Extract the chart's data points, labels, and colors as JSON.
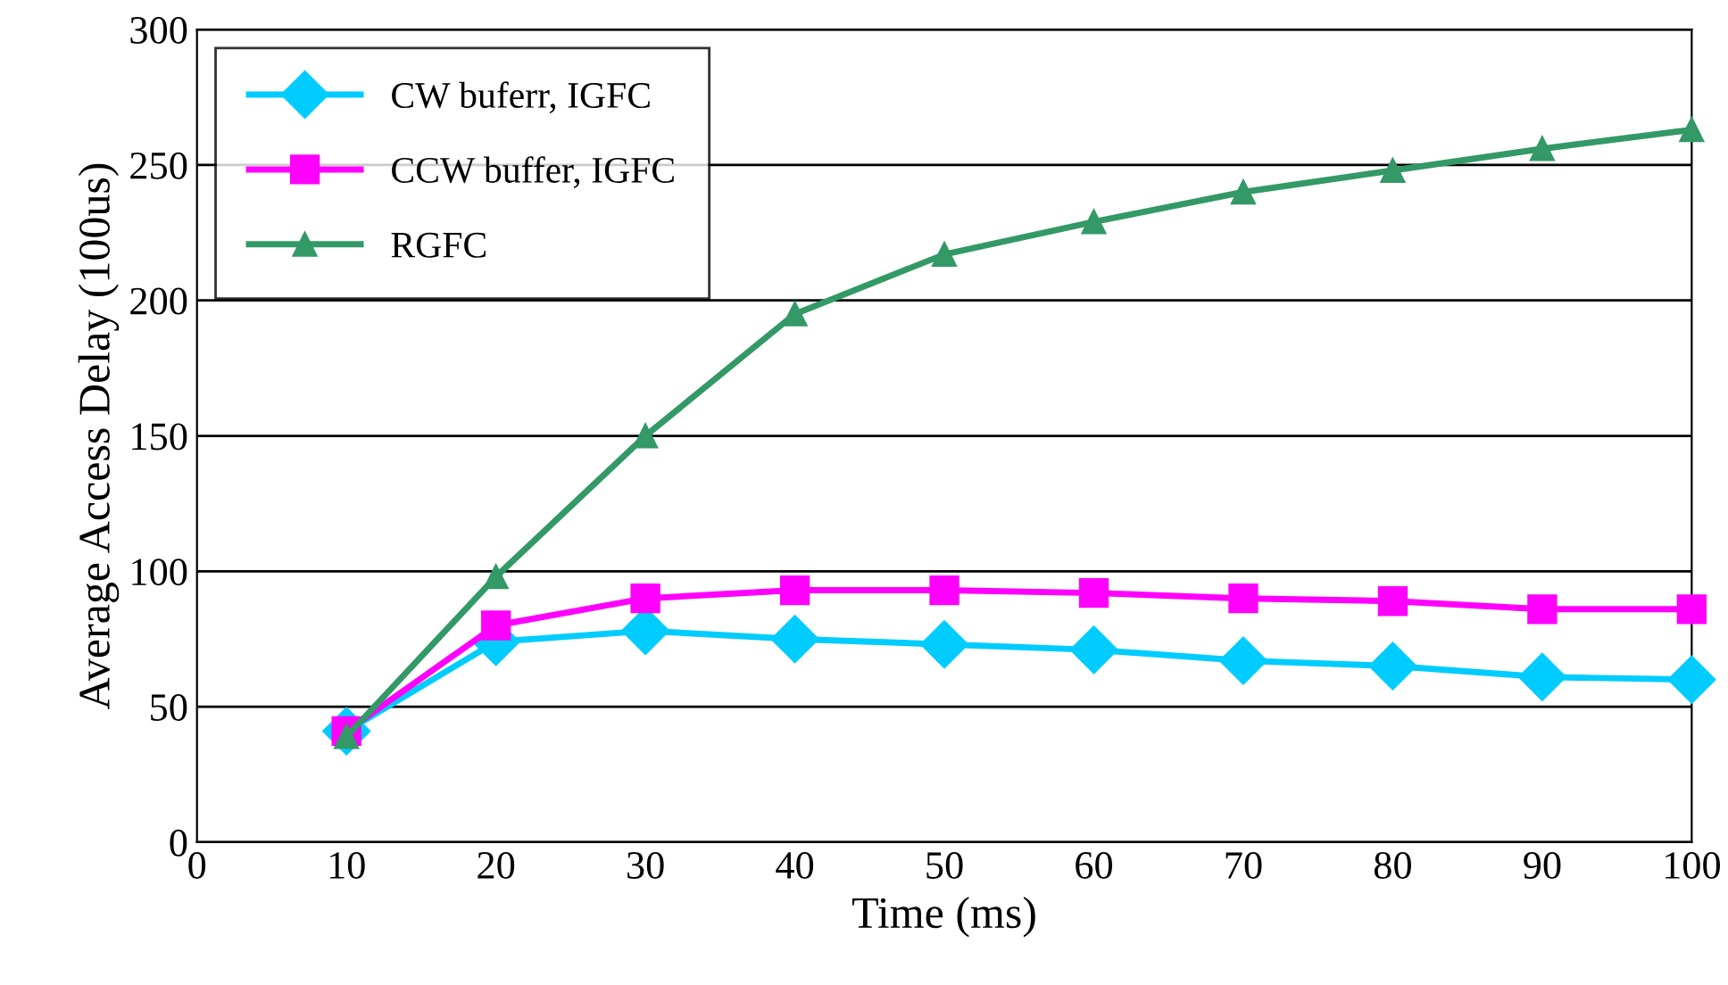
{
  "chart_data": {
    "type": "line",
    "xlabel": "Time (ms)",
    "ylabel": "Average Access Delay (100us)",
    "x": [
      10,
      20,
      30,
      40,
      50,
      60,
      70,
      80,
      90,
      100
    ],
    "series": [
      {
        "name": "CW buferr, IGFC",
        "color": "#00ccff",
        "marker": "diamond",
        "values": [
          41,
          74,
          78,
          75,
          73,
          71,
          67,
          65,
          61,
          60
        ]
      },
      {
        "name": "CCW buffer, IGFC",
        "color": "#ff00ff",
        "marker": "square",
        "values": [
          41,
          80,
          90,
          93,
          93,
          92,
          90,
          89,
          86,
          86
        ]
      },
      {
        "name": "RGFC",
        "color": "#339966",
        "marker": "triangle",
        "values": [
          39,
          98,
          150,
          195,
          217,
          229,
          240,
          248,
          256,
          263
        ]
      }
    ],
    "xlim": [
      0,
      100
    ],
    "xticks": [
      0,
      10,
      20,
      30,
      40,
      50,
      60,
      70,
      80,
      90,
      100
    ],
    "ylim": [
      0,
      300
    ],
    "yticks": [
      0,
      50,
      100,
      150,
      200,
      250,
      300
    ],
    "grid": "y",
    "legend": "top left",
    "line_style": "solid"
  }
}
